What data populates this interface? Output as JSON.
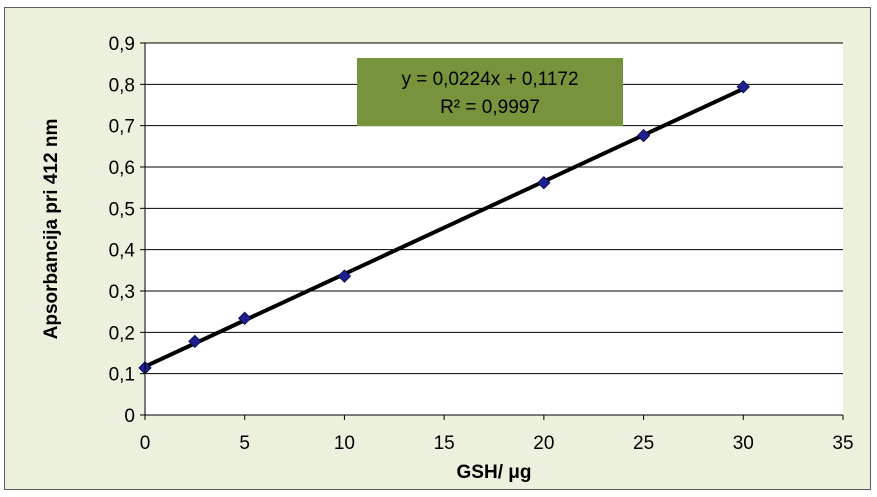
{
  "chart_data": {
    "type": "scatter",
    "title": "",
    "xlabel": "GSH/ μg",
    "ylabel": "Apsorbancija pri 412 nm",
    "xlim": [
      0,
      35
    ],
    "ylim": [
      0,
      0.9
    ],
    "x_ticks": [
      "0",
      "5",
      "10",
      "15",
      "20",
      "25",
      "30",
      "35"
    ],
    "y_ticks": [
      "0",
      "0,1",
      "0,2",
      "0,3",
      "0,4",
      "0,5",
      "0,6",
      "0,7",
      "0,8",
      "0,9"
    ],
    "grid": "horizontal",
    "legend": "none",
    "series": [
      {
        "x": [
          0,
          2.5,
          5,
          10,
          20,
          25,
          30
        ],
        "y": [
          0.114,
          0.178,
          0.234,
          0.336,
          0.562,
          0.676,
          0.794
        ],
        "marker": "diamond",
        "color": "#1f1f8f"
      }
    ],
    "trendline": {
      "type": "linear",
      "slope": 0.0224,
      "intercept": 0.1172,
      "x_range": [
        0,
        30
      ],
      "color": "#000000"
    },
    "annotation": {
      "equation": "y = 0,0224x + 0,1172",
      "r_squared": "R² = 0,9997",
      "background": "#77933c"
    },
    "colors": {
      "background": "#ebf1dd",
      "plot_area": "#ffffff",
      "grid": "#000000"
    }
  }
}
